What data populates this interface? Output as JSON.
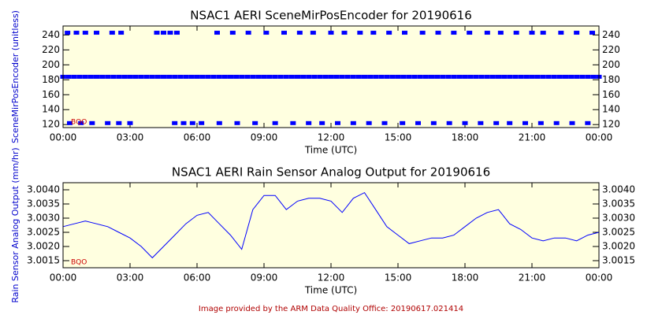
{
  "chart_data": [
    {
      "type": "scatter",
      "title": "NSAC1 AERI SceneMirPosEncoder for 20190616",
      "xlabel": "Time (UTC)",
      "ylabel": "SceneMirPosEncoder (unitless)",
      "annotation": "BQO",
      "color": "#0000ff",
      "xlim": [
        0,
        24
      ],
      "ylim": [
        116,
        252
      ],
      "xticks": [
        {
          "value": 0,
          "label": "00:00"
        },
        {
          "value": 3,
          "label": "03:00"
        },
        {
          "value": 6,
          "label": "06:00"
        },
        {
          "value": 9,
          "label": "09:00"
        },
        {
          "value": 12,
          "label": "12:00"
        },
        {
          "value": 15,
          "label": "15:00"
        },
        {
          "value": 18,
          "label": "18:00"
        },
        {
          "value": 21,
          "label": "21:00"
        },
        {
          "value": 24,
          "label": "00:00"
        }
      ],
      "yticks": [
        120,
        140,
        160,
        180,
        200,
        220,
        240
      ],
      "x": [
        0,
        0.25,
        0.5,
        0.75,
        1,
        1.25,
        1.5,
        1.75,
        2,
        2.25,
        2.5,
        2.75,
        3,
        3.25,
        3.5,
        3.75,
        4,
        4.25,
        4.5,
        4.75,
        5,
        5.25,
        5.5,
        5.75,
        6,
        6.25,
        6.5,
        6.75,
        7,
        7.25,
        7.5,
        7.75,
        8,
        8.25,
        8.5,
        8.75,
        9,
        9.25,
        9.5,
        9.75,
        10,
        10.25,
        10.5,
        10.75,
        11,
        11.25,
        11.5,
        11.75,
        12,
        12.25,
        12.5,
        12.75,
        13,
        13.25,
        13.5,
        13.75,
        14,
        14.25,
        14.5,
        14.75,
        15,
        15.25,
        15.5,
        15.75,
        16,
        16.25,
        16.5,
        16.75,
        17,
        17.25,
        17.5,
        17.75,
        18,
        18.25,
        18.5,
        18.75,
        19,
        19.25,
        19.5,
        19.75,
        20,
        20.25,
        20.5,
        20.75,
        21,
        21.25,
        21.5,
        21.75,
        22,
        22.25,
        22.5,
        22.75,
        23,
        23.25,
        23.5,
        23.75,
        24,
        0.2,
        0.6,
        1.0,
        1.5,
        2.2,
        2.6,
        4.2,
        4.5,
        4.8,
        5.1,
        6.9,
        7.6,
        8.3,
        9.1,
        9.9,
        10.6,
        11.2,
        12.0,
        12.6,
        13.3,
        13.9,
        14.6,
        15.3,
        16.1,
        16.8,
        17.5,
        18.2,
        19.0,
        19.6,
        20.3,
        21.0,
        21.5,
        22.3,
        23.0,
        23.7,
        0.3,
        0.8,
        1.3,
        2.0,
        2.5,
        3.0,
        5.0,
        5.4,
        5.8,
        6.2,
        7.0,
        7.8,
        8.6,
        9.5,
        10.3,
        11.0,
        11.6,
        12.3,
        13.0,
        13.7,
        14.4,
        15.2,
        15.9,
        16.6,
        17.3,
        18.0,
        18.7,
        19.4,
        20.0,
        20.7,
        21.4,
        22.1,
        22.8,
        23.5
      ],
      "values": [
        184,
        184,
        184,
        184,
        184,
        184,
        184,
        184,
        184,
        184,
        184,
        184,
        184,
        184,
        184,
        184,
        184,
        184,
        184,
        184,
        184,
        184,
        184,
        184,
        184,
        184,
        184,
        184,
        184,
        184,
        184,
        184,
        184,
        184,
        184,
        184,
        184,
        184,
        184,
        184,
        184,
        184,
        184,
        184,
        184,
        184,
        184,
        184,
        184,
        184,
        184,
        184,
        184,
        184,
        184,
        184,
        184,
        184,
        184,
        184,
        184,
        184,
        184,
        184,
        184,
        184,
        184,
        184,
        184,
        184,
        184,
        184,
        184,
        184,
        184,
        184,
        184,
        184,
        184,
        184,
        184,
        184,
        184,
        184,
        184,
        184,
        184,
        184,
        184,
        184,
        184,
        184,
        184,
        184,
        184,
        184,
        184,
        243,
        243,
        243,
        243,
        243,
        243,
        243,
        243,
        243,
        243,
        243,
        243,
        243,
        243,
        243,
        243,
        243,
        243,
        243,
        243,
        243,
        243,
        243,
        243,
        243,
        243,
        243,
        243,
        243,
        243,
        243,
        243,
        243,
        243,
        243,
        122,
        122,
        122,
        122,
        122,
        122,
        122,
        122,
        122,
        122,
        122,
        122,
        122,
        122,
        122,
        122,
        122,
        122,
        122,
        122,
        122,
        122,
        122,
        122,
        122,
        122,
        122,
        122,
        122,
        122,
        122,
        122,
        122,
        122
      ]
    },
    {
      "type": "line",
      "title": "NSAC1 AERI Rain Sensor Analog Output for 20190616",
      "xlabel": "Time (UTC)",
      "ylabel": "Rain Sensor Analog Output  (mm/hr)",
      "annotation": "BQO",
      "color": "#0000ff",
      "xlim": [
        0,
        24
      ],
      "ylim": [
        3.00125,
        3.00425
      ],
      "xticks": [
        {
          "value": 0,
          "label": "00:00"
        },
        {
          "value": 3,
          "label": "03:00"
        },
        {
          "value": 6,
          "label": "06:00"
        },
        {
          "value": 9,
          "label": "09:00"
        },
        {
          "value": 12,
          "label": "12:00"
        },
        {
          "value": 15,
          "label": "15:00"
        },
        {
          "value": 18,
          "label": "18:00"
        },
        {
          "value": 21,
          "label": "21:00"
        },
        {
          "value": 24,
          "label": "00:00"
        }
      ],
      "yticks": [
        {
          "value": 3.0015,
          "label": "3.0015"
        },
        {
          "value": 3.002,
          "label": "3.0020"
        },
        {
          "value": 3.0025,
          "label": "3.0025"
        },
        {
          "value": 3.003,
          "label": "3.0030"
        },
        {
          "value": 3.0035,
          "label": "3.0035"
        },
        {
          "value": 3.004,
          "label": "3.0040"
        }
      ],
      "x": [
        0,
        0.5,
        1,
        1.5,
        2,
        2.5,
        3,
        3.5,
        4,
        4.5,
        5,
        5.5,
        6,
        6.5,
        7,
        7.5,
        8,
        8.5,
        9,
        9.5,
        10,
        10.5,
        11,
        11.5,
        12,
        12.5,
        13,
        13.5,
        14,
        14.5,
        15,
        15.5,
        16,
        16.5,
        17,
        17.5,
        18,
        18.5,
        19,
        19.5,
        20,
        20.5,
        21,
        21.5,
        22,
        22.5,
        23,
        23.5,
        24
      ],
      "values": [
        3.0027,
        3.0028,
        3.0029,
        3.0028,
        3.0027,
        3.0025,
        3.0023,
        3.002,
        3.0016,
        3.002,
        3.0024,
        3.0028,
        3.0031,
        3.0032,
        3.0028,
        3.0024,
        3.0019,
        3.0033,
        3.0038,
        3.0038,
        3.0033,
        3.0036,
        3.0037,
        3.0037,
        3.0036,
        3.0032,
        3.0037,
        3.0039,
        3.0033,
        3.0027,
        3.0024,
        3.0021,
        3.0022,
        3.0023,
        3.0023,
        3.0024,
        3.0027,
        3.003,
        3.0032,
        3.0033,
        3.0028,
        3.0026,
        3.0023,
        3.0022,
        3.0023,
        3.0023,
        3.0022,
        3.0024,
        3.0025
      ]
    }
  ],
  "footer": "Image provided by the ARM Data Quality Office: 20190617.021414"
}
